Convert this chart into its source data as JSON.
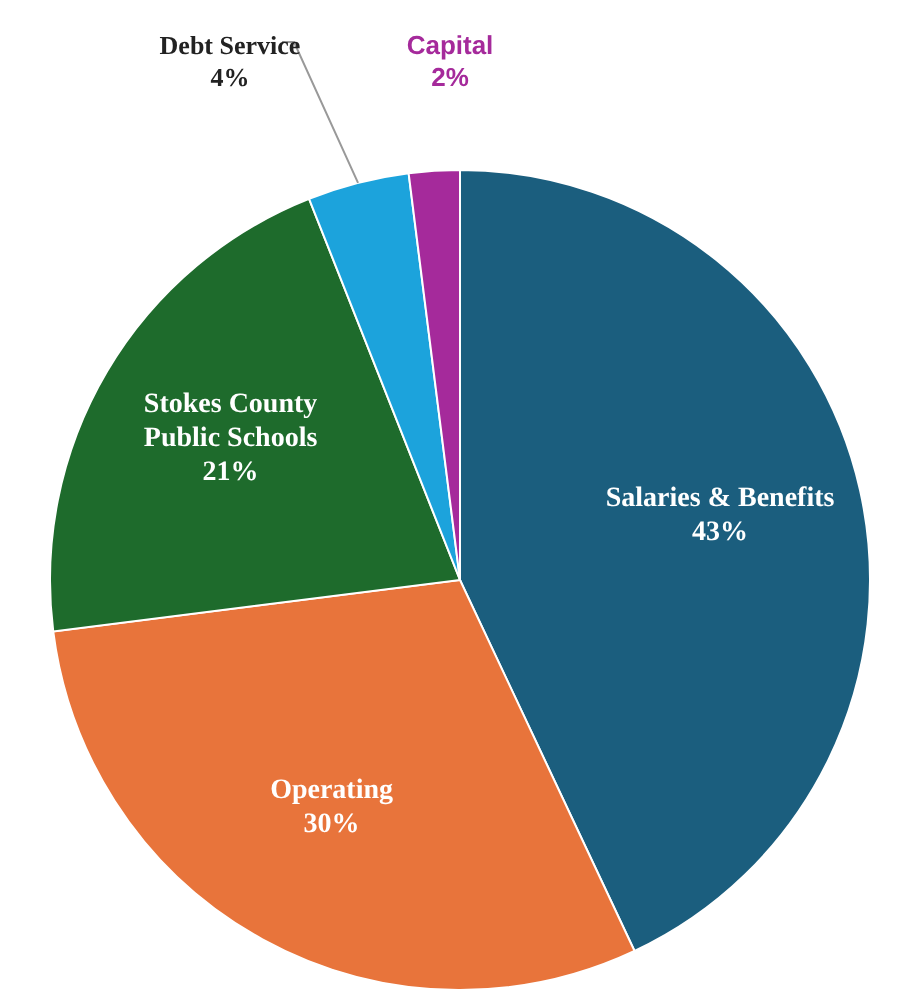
{
  "chart_data": {
    "type": "pie",
    "categories": [
      "Salaries & Benefits",
      "Operating",
      "Stokes County Public Schools",
      "Debt Service",
      "Capital"
    ],
    "values": [
      43,
      30,
      21,
      4,
      2
    ],
    "colors": [
      "#1b5e7e",
      "#e8743b",
      "#1e6b2c",
      "#1ca3dc",
      "#a52a9b"
    ],
    "value_labels": [
      "43%",
      "30%",
      "21%",
      "4%",
      "2%"
    ]
  }
}
